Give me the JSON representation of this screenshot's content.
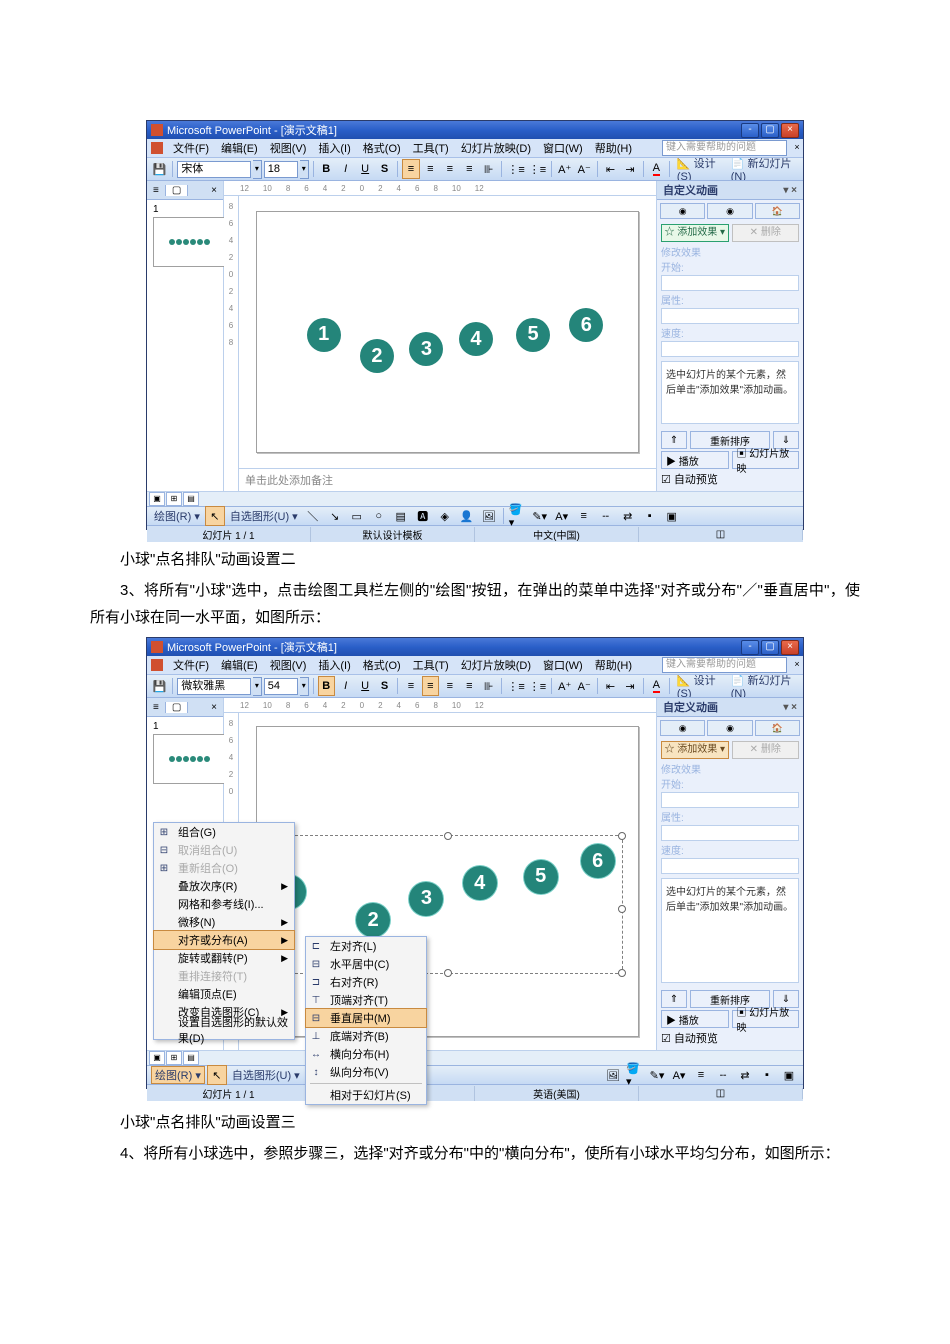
{
  "shared": {
    "title": "Microsoft PowerPoint - [演示文稿1]",
    "menus": [
      "文件(F)",
      "编辑(E)",
      "视图(V)",
      "插入(I)",
      "格式(O)",
      "工具(T)",
      "幻灯片放映(D)",
      "窗口(W)",
      "帮助(H)"
    ],
    "helpbox_placeholder": "键入需要帮助的问题",
    "outline_tab": "≡",
    "slides_tab": "▢",
    "close_tab": "×",
    "ruler_marks": [
      "12",
      "10",
      "8",
      "6",
      "4",
      "2",
      "0",
      "2",
      "4",
      "6",
      "8",
      "10",
      "12"
    ],
    "ruler_v_marks": [
      "8",
      "6",
      "4",
      "2",
      "0",
      "2",
      "4",
      "6",
      "8"
    ],
    "notes_placeholder": "单击此处添加备注",
    "ball_color": "#24857A",
    "balls": [
      "1",
      "2",
      "3",
      "4",
      "5",
      "6"
    ],
    "taskpane_title": "自定义动画",
    "tp_close": "▾  ×",
    "tp_addfx": "☆ 添加效果 ▾",
    "tp_delfx": "✕  删除",
    "tp_modlabel": "修改效果",
    "tp_rows": [
      "开始:",
      "属性:",
      "速度:"
    ],
    "tp_hint": "选中幻灯片的某个元素，然后单击\"添加效果\"添加动画。",
    "tp_reorder_up": "⇑",
    "tp_reorder": "重新排序",
    "tp_reorder_dn": "⇓",
    "tp_play": "▶  播放",
    "tp_slideshow": "▣ 幻灯片放映",
    "tp_autopreview": "☑ 自动预览",
    "drawbar_draw": "绘图(R) ▾",
    "drawbar_autoshape": "自选图形(U) ▾",
    "design_label": "设计(S)",
    "newslide_label": "新幻灯片(N)",
    "slide_pos": "幻灯片 1 / 1",
    "design_template": "默认设计模板",
    "design_template2": "计模板",
    "viewbtns_labels": [
      "▣",
      "⊞",
      "▤"
    ]
  },
  "win1": {
    "font_name": "宋体",
    "font_size": "18",
    "ime": "中文(中国)"
  },
  "win2": {
    "font_name": "微软雅黑",
    "font_size": "54",
    "ime": "英语(美国)",
    "ctx_items": [
      {
        "t": "组合(G)",
        "ic": "⊞"
      },
      {
        "t": "取消组合(U)",
        "ic": "⊟",
        "dim": 1
      },
      {
        "t": "重新组合(O)",
        "ic": "⊞",
        "dim": 1
      },
      {
        "t": "叠放次序(R)",
        "arrow": 1
      },
      {
        "t": "网格和参考线(I)..."
      },
      {
        "t": "微移(N)",
        "arrow": 1
      },
      {
        "t": "对齐或分布(A)",
        "arrow": 1,
        "hi": 1
      },
      {
        "t": "旋转或翻转(P)",
        "arrow": 1
      },
      {
        "t": "重排连接符(T)",
        "ic": "",
        "dim": 1
      },
      {
        "t": "编辑顶点(E)",
        "ic": ""
      },
      {
        "t": "改变自选图形(C)",
        "arrow": 1
      },
      {
        "t": "设置自选图形的默认效果(D)"
      }
    ],
    "sub_items": [
      {
        "t": "左对齐(L)",
        "ic": "⊏"
      },
      {
        "t": "水平居中(C)",
        "ic": "⊟"
      },
      {
        "t": "右对齐(R)",
        "ic": "⊐"
      },
      {
        "t": "顶端对齐(T)",
        "ic": "⊤"
      },
      {
        "t": "垂直居中(M)",
        "ic": "⊟",
        "hi": 1
      },
      {
        "t": "底端对齐(B)",
        "ic": "⊥"
      },
      {
        "t": "横向分布(H)",
        "ic": "↔"
      },
      {
        "t": "纵向分布(V)",
        "ic": "↕"
      },
      {
        "sep": 1
      },
      {
        "t": "相对于幻灯片(S)"
      }
    ]
  },
  "text": {
    "cap1": "小球\"点名排队\"动画设置二",
    "p3": "3、将所有\"小球\"选中，点击绘图工具栏左侧的\"绘图\"按钮，在弹出的菜单中选择\"对齐或分布\"／\"垂直居中\"，使所有小球在同一水平面，如图所示：",
    "cap2": "小球\"点名排队\"动画设置三",
    "p4": "4、将所有小球选中，参照步骤三，选择\"对齐或分布\"中的\"横向分布\"，使所有小球水平均匀分布，如图所示："
  }
}
